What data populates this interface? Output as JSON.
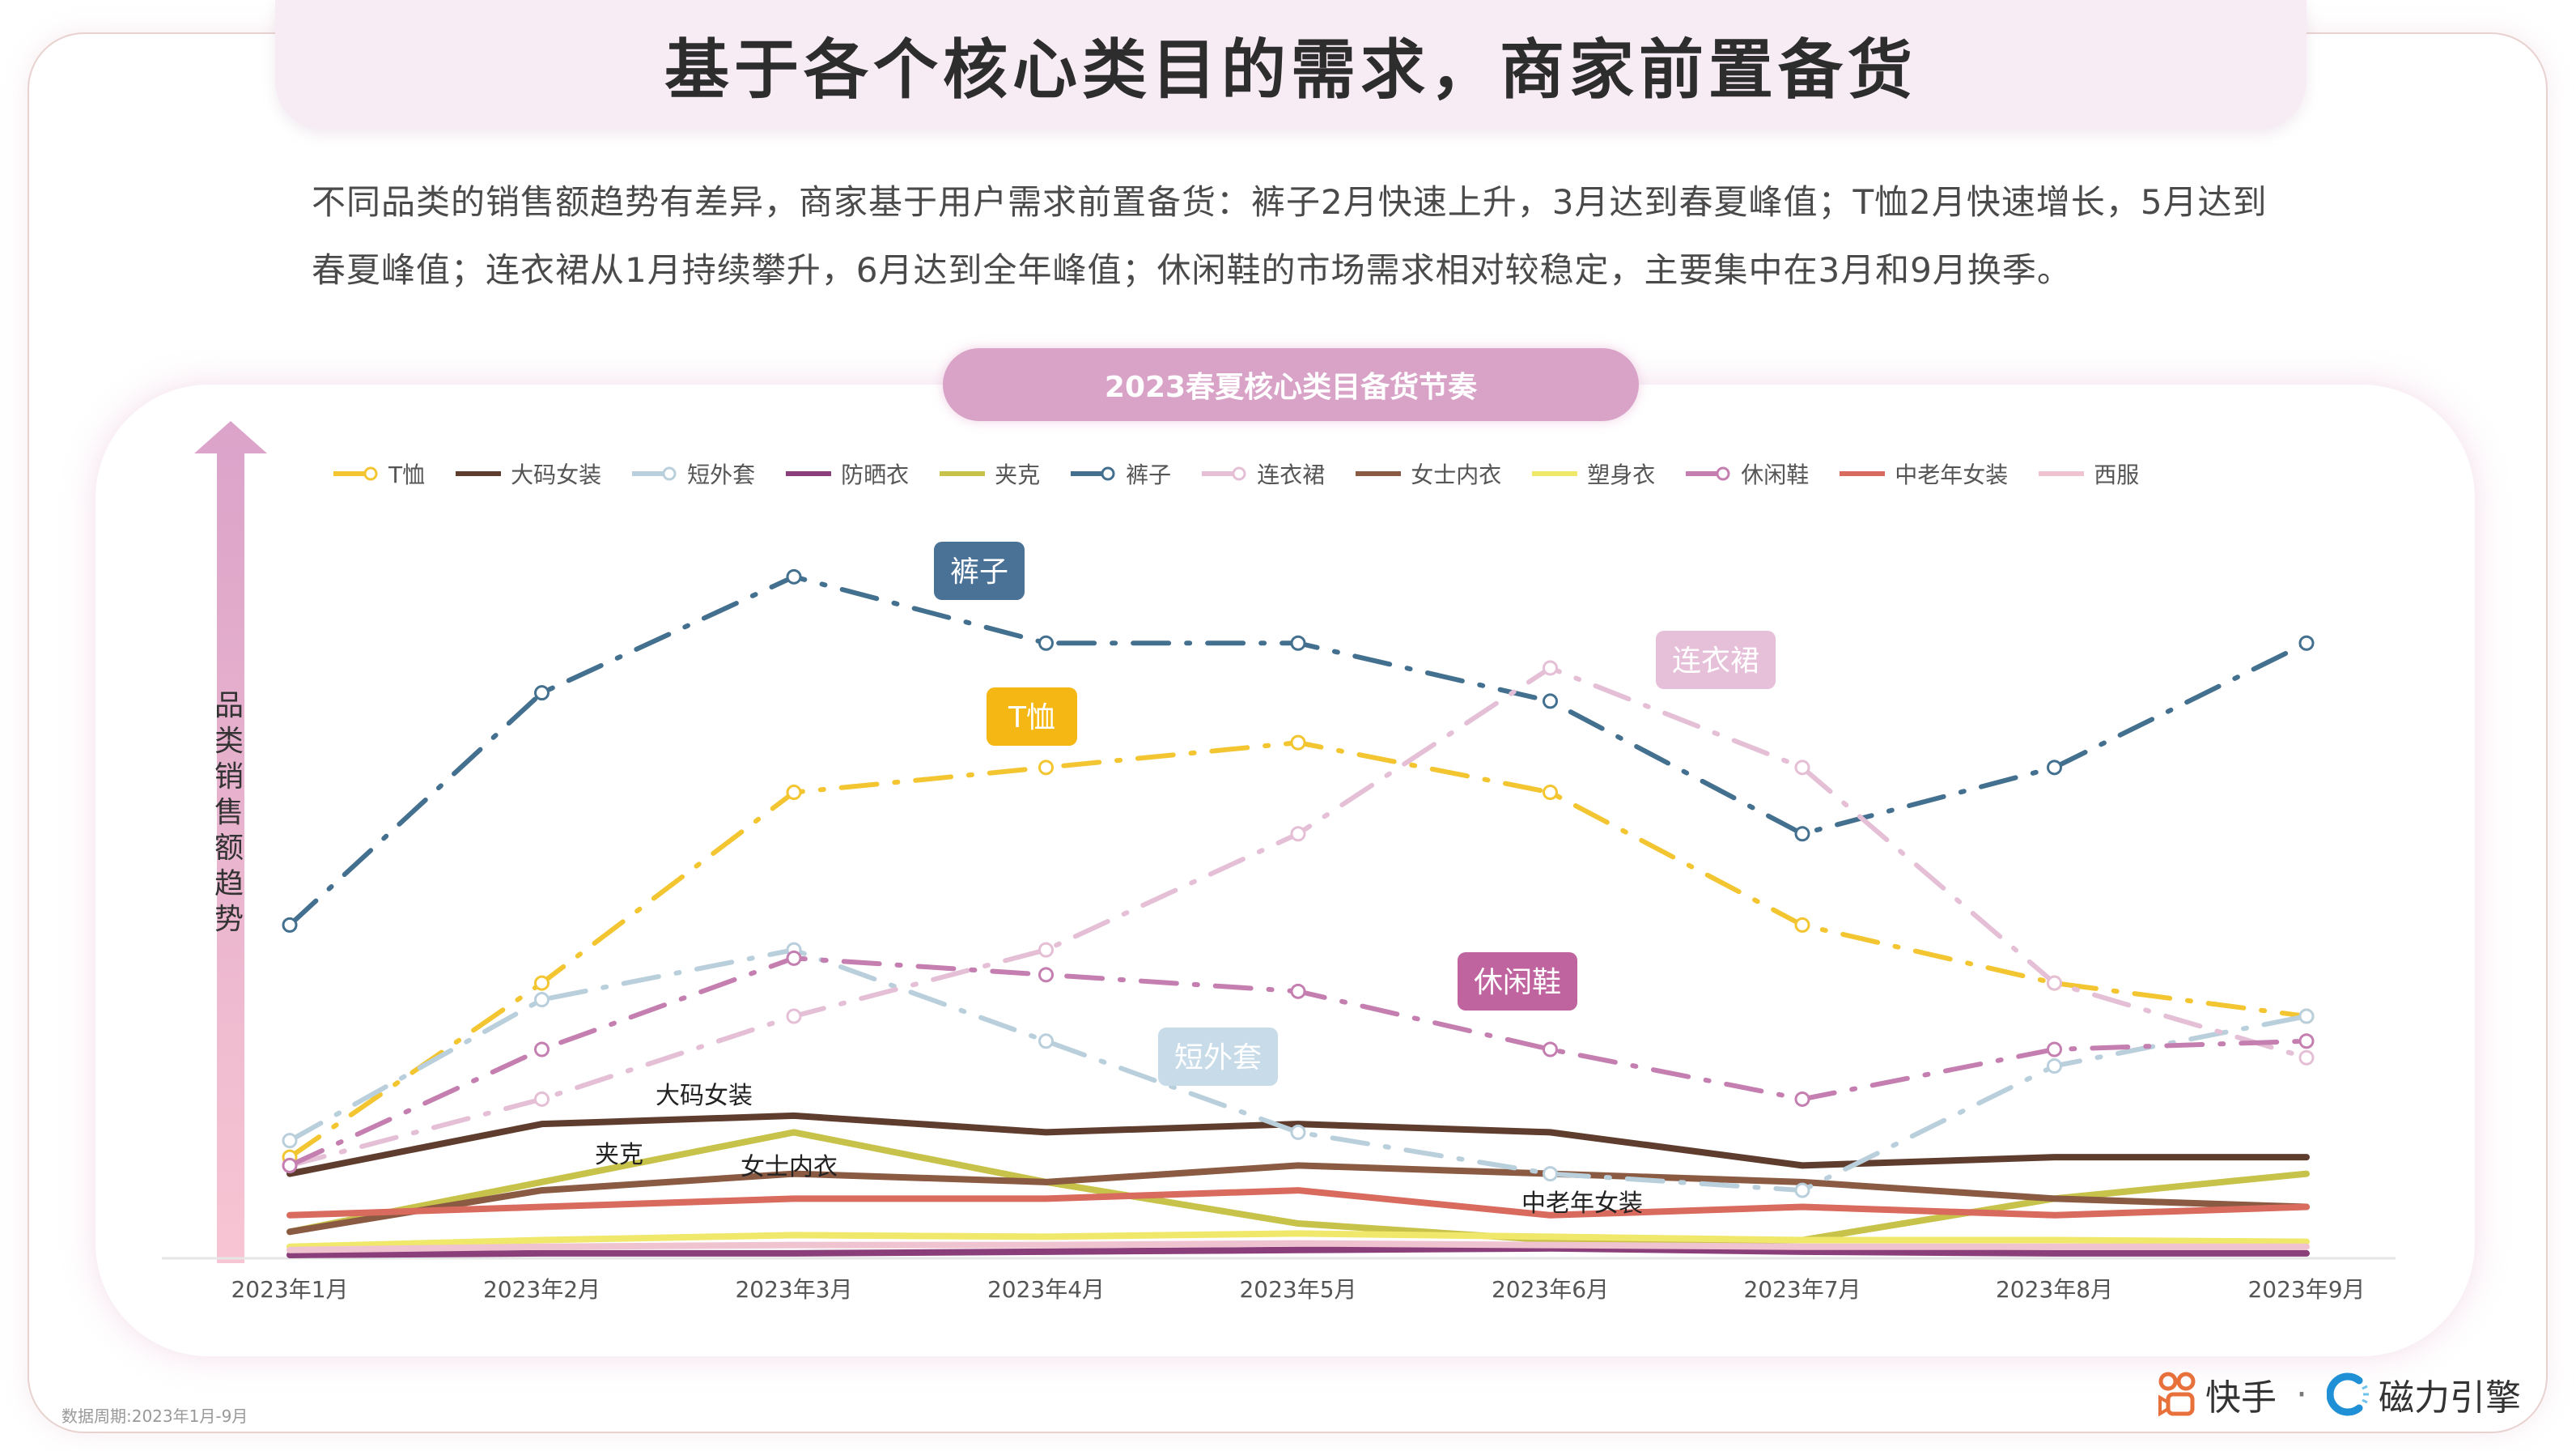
{
  "header": {
    "title": "基于各个核心类目的需求，商家前置备货",
    "description": "不同品类的销售额趋势有差异，商家基于用户需求前置备货：裤子2月快速上升，3月达到春夏峰值；T恤2月快速增长，5月达到春夏峰值；连衣裙从1月持续攀升，6月达到全年峰值；休闲鞋的市场需求相对较稳定，主要集中在3月和9月换季。"
  },
  "footer": {
    "data_period": "数据周期:2023年1月-9月",
    "brand_kuaishou": "快手",
    "brand_separator": "·",
    "brand_cili": "磁力引擎"
  },
  "colors": {
    "pill": "#d9a3c8",
    "kuaishou": "#e8703a",
    "cili": "#1f8fd6"
  },
  "chart_data": {
    "type": "line",
    "title": "2023春夏核心类目备货节奏",
    "xlabel": "",
    "ylabel": "品类销售额趋势",
    "y_unit": "relative index (axis unlabeled, values estimated)",
    "ylim": [
      0,
      100
    ],
    "grid": false,
    "legend_position": "top",
    "categories": [
      "2023年1月",
      "2023年2月",
      "2023年3月",
      "2023年4月",
      "2023年5月",
      "2023年6月",
      "2023年7月",
      "2023年8月",
      "2023年9月"
    ],
    "series": [
      {
        "name": "T恤",
        "color": "#f2c531",
        "style": "dashdot",
        "markers": true,
        "values": [
          12,
          33,
          56,
          59,
          62,
          56,
          40,
          33,
          29
        ]
      },
      {
        "name": "大码女装",
        "color": "#5e3d2e",
        "style": "solid",
        "markers": false,
        "values": [
          10,
          16,
          17,
          15,
          16,
          15,
          11,
          12,
          12
        ]
      },
      {
        "name": "短外套",
        "color": "#b9cfdc",
        "style": "dashdot",
        "markers": true,
        "values": [
          14,
          31,
          37,
          26,
          15,
          10,
          8,
          23,
          29
        ]
      },
      {
        "name": "防晒衣",
        "color": "#8b3f7a",
        "style": "solid",
        "markers": false,
        "values": [
          0.2,
          0.4,
          0.4,
          0.6,
          0.8,
          1,
          0.6,
          0.4,
          0.4
        ]
      },
      {
        "name": "夹克",
        "color": "#c7c24a",
        "style": "solid",
        "markers": false,
        "values": [
          3,
          9,
          15,
          9,
          4,
          2,
          2,
          7,
          10
        ]
      },
      {
        "name": "裤子",
        "color": "#44708f",
        "style": "dashdot",
        "markers": true,
        "values": [
          40,
          68,
          82,
          74,
          74,
          67,
          51,
          59,
          74
        ]
      },
      {
        "name": "连衣裙",
        "color": "#e4bfd6",
        "style": "dashdot",
        "markers": true,
        "values": [
          11,
          19,
          29,
          37,
          51,
          71,
          59,
          33,
          24
        ]
      },
      {
        "name": "女士内衣",
        "color": "#8a5a42",
        "style": "solid",
        "markers": false,
        "values": [
          3,
          8,
          10,
          9,
          11,
          10,
          9,
          7,
          6
        ]
      },
      {
        "name": "塑身衣",
        "color": "#f0e86a",
        "style": "solid",
        "markers": false,
        "values": [
          1.2,
          2,
          2.6,
          2.4,
          2.8,
          2.4,
          2,
          2,
          1.8
        ]
      },
      {
        "name": "休闲鞋",
        "color": "#c47fb0",
        "style": "dashdot",
        "markers": true,
        "values": [
          11,
          25,
          36,
          34,
          32,
          25,
          19,
          25,
          26
        ]
      },
      {
        "name": "中老年女装",
        "color": "#d86a5e",
        "style": "solid",
        "markers": false,
        "values": [
          5,
          6,
          7,
          7,
          8,
          5,
          6,
          5,
          6
        ]
      },
      {
        "name": "西服",
        "color": "#f0c3d0",
        "style": "solid",
        "markers": false,
        "values": [
          0.8,
          1.2,
          1.4,
          1.4,
          1.6,
          1.4,
          1.2,
          1.2,
          1.2
        ]
      }
    ],
    "annotations": [
      {
        "text": "裤子",
        "series": "裤子",
        "box_color": "#4a7196",
        "text_color": "#ffffff"
      },
      {
        "text": "T恤",
        "series": "T恤",
        "box_color": "#f5b714",
        "text_color": "#ffffff"
      },
      {
        "text": "连衣裙",
        "series": "连衣裙",
        "box_color": "#e6bfd8",
        "text_color": "#ffffff"
      },
      {
        "text": "休闲鞋",
        "series": "休闲鞋",
        "box_color": "#c0649f",
        "text_color": "#ffffff"
      },
      {
        "text": "短外套",
        "series": "短外套",
        "box_color": "#c7dbe8",
        "text_color": "#ffffff"
      },
      {
        "text": "大码女装",
        "series": "大码女装",
        "box_color": "",
        "text_color": "#222222"
      },
      {
        "text": "夹克",
        "series": "夹克",
        "box_color": "",
        "text_color": "#222222"
      },
      {
        "text": "女士内衣",
        "series": "女士内衣",
        "box_color": "",
        "text_color": "#222222"
      },
      {
        "text": "中老年女装",
        "series": "中老年女装",
        "box_color": "",
        "text_color": "#222222"
      }
    ]
  }
}
